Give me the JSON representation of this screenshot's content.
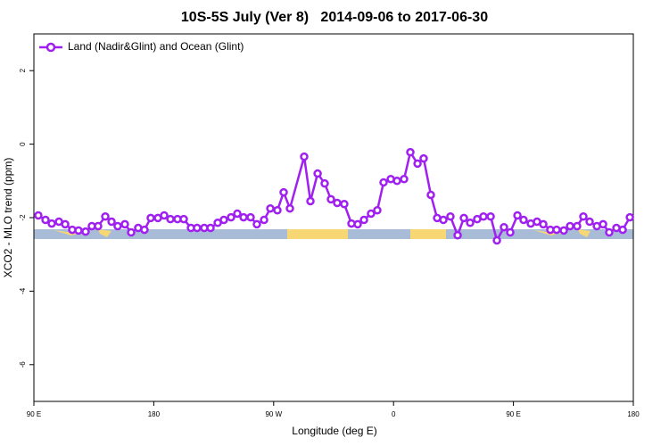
{
  "chart_data": {
    "type": "line",
    "title": "10S-5S July (Ver 8)   2014-09-06 to 2017-06-30",
    "x_label": "Longitude (deg E)",
    "y_label": "XCO2 - MLO trend (ppm)",
    "xlim": [
      90,
      540
    ],
    "xticks": [
      {
        "value": 90,
        "label": "90 E"
      },
      180,
      {
        "value": 270,
        "label": "90 W"
      },
      {
        "value": 360,
        "label": "0"
      },
      {
        "value": 450,
        "label": "90 E"
      },
      {
        "value": 540,
        "label": "180"
      }
    ],
    "ylim": [
      -7,
      3
    ],
    "yticks": [
      -6,
      -4,
      -2,
      0,
      2
    ],
    "legend": "upper left",
    "x": [
      93.3,
      98.7,
      103.4,
      108.8,
      113.5,
      118.8,
      123.5,
      128.8,
      133.5,
      138.2,
      143.6,
      148.3,
      152.9,
      158.3,
      163.0,
      168.3,
      173.0,
      177.7,
      183.1,
      187.8,
      192.5,
      197.8,
      202.5,
      207.9,
      212.5,
      217.9,
      222.6,
      228.0,
      232.6,
      238.0,
      242.7,
      247.4,
      252.7,
      257.4,
      262.8,
      267.5,
      272.8,
      277.5,
      282.2,
      292.9,
      297.6,
      303.0,
      308.3,
      313.0,
      317.7,
      323.0,
      328.4,
      333.1,
      337.8,
      343.1,
      347.8,
      352.5,
      357.9,
      362.6,
      367.9,
      372.6,
      378.0,
      382.6,
      388.0,
      392.7,
      397.4,
      402.7,
      408.1,
      412.8,
      417.5,
      422.8,
      427.5,
      432.9,
      437.6,
      442.9,
      447.6,
      453.0,
      457.6,
      463.0,
      467.7,
      472.4,
      477.7,
      482.4,
      487.8,
      492.5,
      497.8,
      502.5,
      507.2,
      512.6,
      517.3,
      521.9,
      527.3,
      532.0,
      537.4
    ],
    "series": [
      {
        "name": "Land (Nadir&Glint) and Ocean (Glint)",
        "color": "#a020f0",
        "values": [
          -1.94,
          -2.06,
          -2.16,
          -2.11,
          -2.18,
          -2.33,
          -2.35,
          -2.38,
          -2.23,
          -2.23,
          -1.97,
          -2.11,
          -2.23,
          -2.18,
          -2.4,
          -2.28,
          -2.33,
          -2.01,
          -2.01,
          -1.94,
          -2.04,
          -2.04,
          -2.04,
          -2.28,
          -2.28,
          -2.28,
          -2.28,
          -2.14,
          -2.06,
          -1.99,
          -1.89,
          -1.99,
          -1.99,
          -2.18,
          -2.06,
          -1.75,
          -1.8,
          -1.31,
          -1.75,
          -0.34,
          -1.55,
          -0.8,
          -1.07,
          -1.5,
          -1.6,
          -1.63,
          -2.16,
          -2.18,
          -2.06,
          -1.89,
          -1.8,
          -1.04,
          -0.95,
          -1.0,
          -0.95,
          -0.22,
          -0.53,
          -0.39,
          -1.38,
          -2.01,
          -2.06,
          -1.97,
          -2.48,
          -2.01,
          -2.14,
          -2.04,
          -1.97,
          -1.97,
          -2.62,
          -2.26,
          -2.4,
          -1.94,
          -2.06,
          -2.16,
          -2.11,
          -2.18,
          -2.33,
          -2.33,
          -2.35,
          -2.23,
          -2.23,
          -1.97,
          -2.11,
          -2.23,
          -2.18,
          -2.4,
          -2.28,
          -2.33,
          -1.99
        ]
      }
    ]
  }
}
